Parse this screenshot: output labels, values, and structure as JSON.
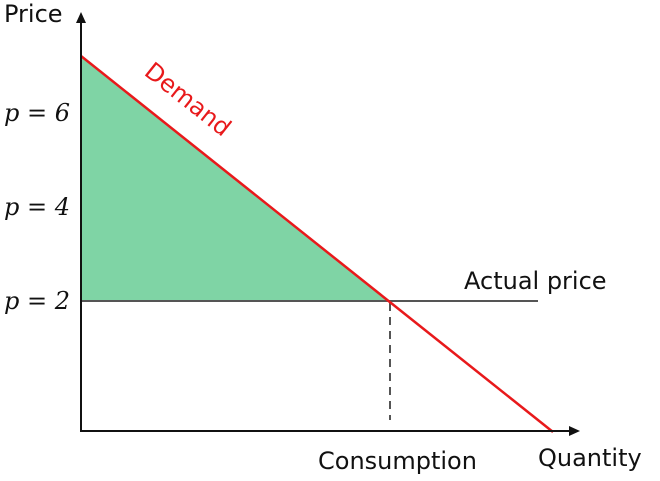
{
  "chart_data": {
    "type": "line",
    "xlabel": "Quantity",
    "ylabel": "Price",
    "y_ticks": [
      {
        "value": 6,
        "label": "p = 6"
      },
      {
        "value": 4,
        "label": "p = 4"
      },
      {
        "value": 2,
        "label": "p = 2"
      }
    ],
    "x_marker_label": "Consumption",
    "demand": {
      "name": "Demand",
      "color": "#e8191b"
    },
    "price_line": {
      "name": "Actual price",
      "value": 2,
      "color": "#555555"
    },
    "surplus_fill": "#7fd4a5",
    "axis_color": "#111111"
  }
}
